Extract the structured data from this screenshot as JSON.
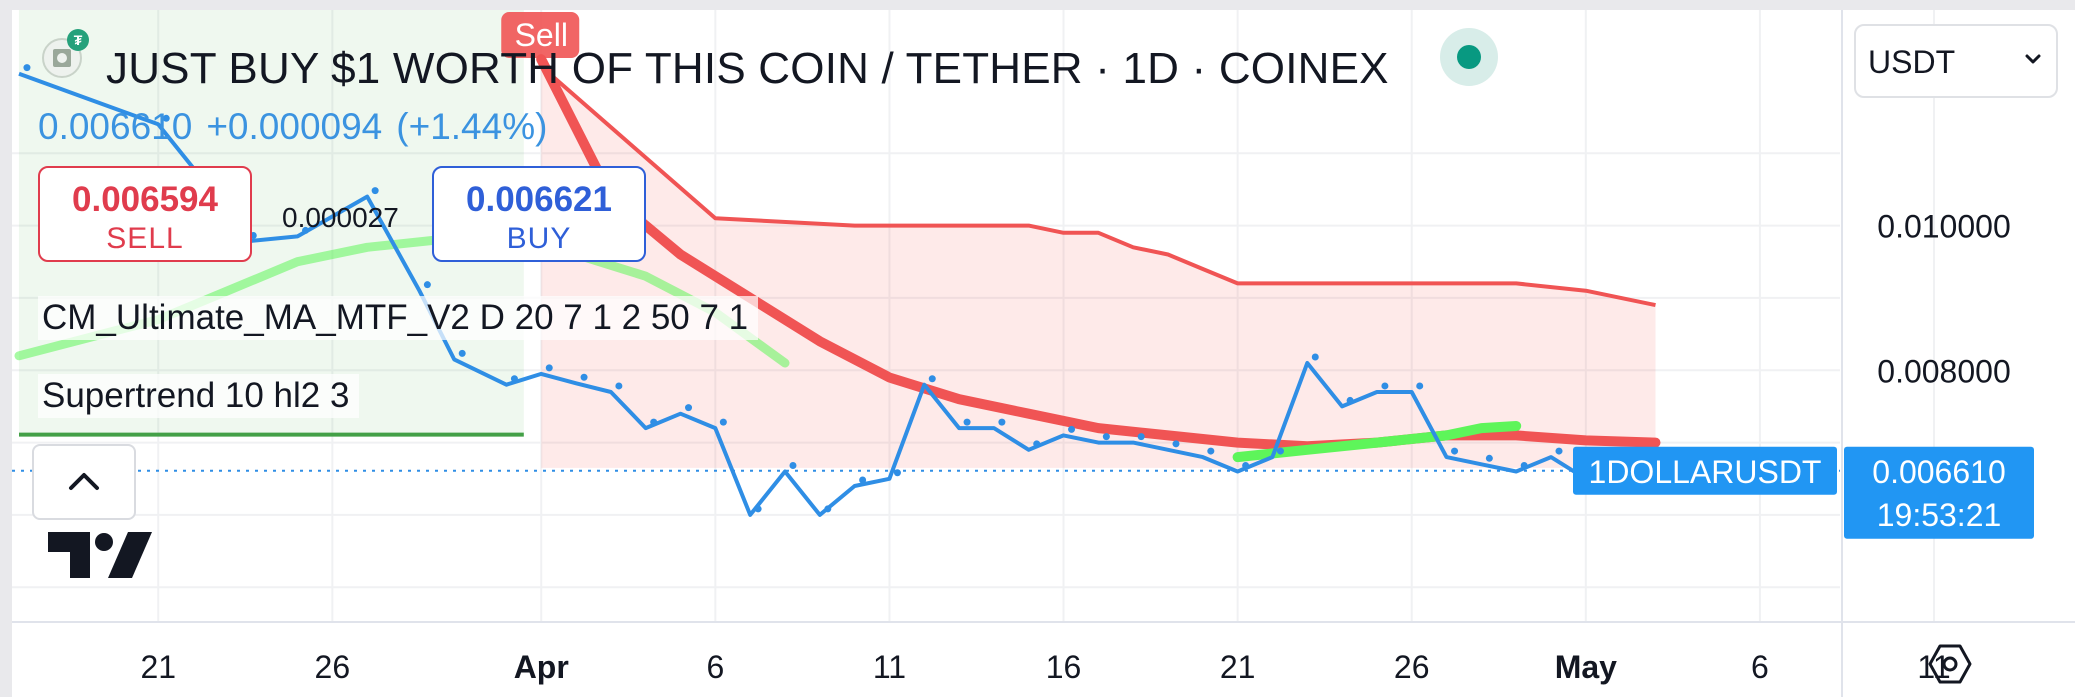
{
  "header": {
    "title": "JUST BUY $1 WORTH OF THIS COIN / TETHER · 1D · COINEX",
    "coin_icon": "dollar-bill-icon",
    "badge_icon": "tether-icon",
    "status_color": "#089981"
  },
  "quote": {
    "last": "0.006610",
    "change": "+0.000094",
    "change_pct": "(+1.44%)"
  },
  "trade": {
    "sell_price": "0.006594",
    "sell_label": "SELL",
    "buy_price": "0.006621",
    "buy_label": "BUY",
    "spread": "0.000027"
  },
  "indicators": {
    "ma": "CM_Ultimate_MA_MTF_V2 D 20 7 1 2 50 7 1",
    "supertrend": "Supertrend 10 hl2 3"
  },
  "currency_select": {
    "value": "USDT"
  },
  "icons": {
    "collapse": "chevron-up-icon",
    "logo": "tradingview-logo-icon",
    "settings": "hexagon-settings-icon"
  },
  "colors": {
    "price": "#2f8ee5",
    "up": "#5ef55a",
    "down": "#f05454",
    "sell": "#e03c4d",
    "buy": "#2f5fd8",
    "label": "#2196f3"
  },
  "chart_data": {
    "type": "line",
    "symbol_label": "1DOLLARUSDT",
    "last_price": "0.006610",
    "countdown": "19:53:21",
    "sell_marker": "Sell",
    "x_tick_labels": [
      "21",
      "26",
      "Apr",
      "6",
      "11",
      "16",
      "21",
      "26",
      "May",
      "6",
      "11"
    ],
    "y_tick_labels": [
      "0.010000",
      "0.008000"
    ],
    "y_ticks": [
      0.01,
      0.008
    ],
    "ylim": [
      0.00452,
      0.01298
    ],
    "xlim": [
      -4.2,
      48.3
    ],
    "x_tick_days": [
      0,
      5,
      11,
      16,
      21,
      26,
      31,
      36,
      41,
      46,
      51
    ],
    "price": {
      "x": [
        -4,
        0,
        2,
        2.5,
        4,
        6,
        7.5,
        8.5,
        10,
        11,
        12,
        13,
        14,
        15,
        16,
        17,
        18,
        19,
        20,
        21,
        22,
        23,
        24,
        25,
        26,
        27,
        28,
        29,
        30,
        31,
        32,
        33,
        34,
        35,
        36,
        37,
        38,
        39,
        40,
        41,
        42,
        43
      ],
      "y": [
        0.0121,
        0.0114,
        0.0102,
        0.00978,
        0.00985,
        0.0104,
        0.0091,
        0.00815,
        0.0078,
        0.00795,
        0.00782,
        0.0077,
        0.0072,
        0.0074,
        0.0072,
        0.006,
        0.0066,
        0.006,
        0.0064,
        0.0065,
        0.0078,
        0.0072,
        0.0072,
        0.0069,
        0.0071,
        0.007,
        0.007,
        0.0069,
        0.0068,
        0.0066,
        0.0068,
        0.0081,
        0.0075,
        0.0077,
        0.0077,
        0.0068,
        0.0067,
        0.0066,
        0.0068,
        0.0065,
        0.0066,
        0.00661
      ]
    },
    "ma_up": {
      "x": [
        -4,
        0,
        2,
        4,
        6,
        8,
        10,
        12,
        14,
        16,
        18
      ],
      "y": [
        0.0082,
        0.0087,
        0.0091,
        0.0095,
        0.0097,
        0.0098,
        0.0098,
        0.0096,
        0.0093,
        0.0088,
        0.0081
      ]
    },
    "ma_down": {
      "x": [
        11,
        13,
        15,
        17,
        19,
        21,
        23,
        25,
        27,
        29,
        31,
        33,
        35,
        37,
        39,
        41,
        43
      ],
      "y": [
        0.0123,
        0.0104,
        0.0096,
        0.009,
        0.0084,
        0.0079,
        0.0076,
        0.0074,
        0.0072,
        0.0071,
        0.007,
        0.00695,
        0.007,
        0.0071,
        0.0071,
        0.00703,
        0.007
      ]
    },
    "ma_up_late": {
      "x": [
        31,
        33,
        35,
        37,
        38,
        39
      ],
      "y": [
        0.0068,
        0.0069,
        0.007,
        0.0071,
        0.0072,
        0.00723
      ]
    },
    "supertrend_up": {
      "x": [
        -4,
        10.5
      ],
      "y": [
        0.00711,
        0.00711
      ]
    },
    "supertrend_down": {
      "x": [
        11,
        16,
        20,
        25,
        26,
        27,
        28,
        29,
        30,
        31,
        36,
        38,
        39,
        41,
        43
      ],
      "y": [
        0.0122,
        0.0101,
        0.01,
        0.01,
        0.0099,
        0.0099,
        0.0097,
        0.0096,
        0.0094,
        0.0092,
        0.0092,
        0.0092,
        0.0092,
        0.0091,
        0.0089
      ]
    }
  }
}
